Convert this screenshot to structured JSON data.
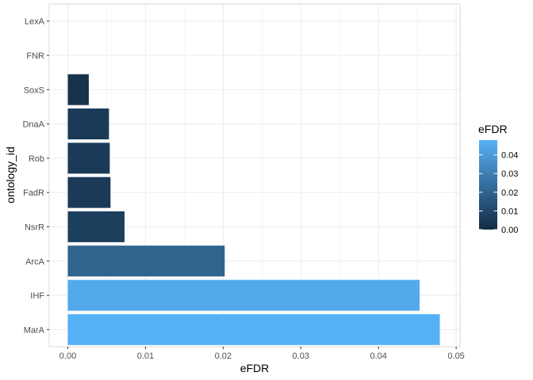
{
  "chart_data": {
    "type": "bar",
    "orientation": "horizontal",
    "categories": [
      "LexA",
      "FNR",
      "SoxS",
      "DnaA",
      "Rob",
      "FadR",
      "NsrR",
      "ArcA",
      "IHF",
      "MarA"
    ],
    "values": [
      0,
      0,
      0.0027,
      0.0053,
      0.0054,
      0.0055,
      0.0073,
      0.0202,
      0.0453,
      0.0479
    ],
    "xlabel": "eFDR",
    "ylabel": "ontology_id",
    "xlim": [
      -0.0024,
      0.0505
    ],
    "x_ticks": [
      0.0,
      0.01,
      0.02,
      0.03,
      0.04,
      0.05
    ],
    "x_tick_labels": [
      "0.00",
      "0.01",
      "0.02",
      "0.03",
      "0.04",
      "0.05"
    ],
    "grid": true,
    "legend": {
      "title": "eFDR",
      "placement": "right",
      "type": "colorbar",
      "ticks": [
        0.0,
        0.01,
        0.02,
        0.03,
        0.04
      ],
      "tick_labels": [
        "0.00",
        "0.01",
        "0.02",
        "0.03",
        "0.04"
      ],
      "range": [
        0,
        0.0479
      ],
      "low_color": "#132B43",
      "high_color": "#56B1F7"
    }
  }
}
